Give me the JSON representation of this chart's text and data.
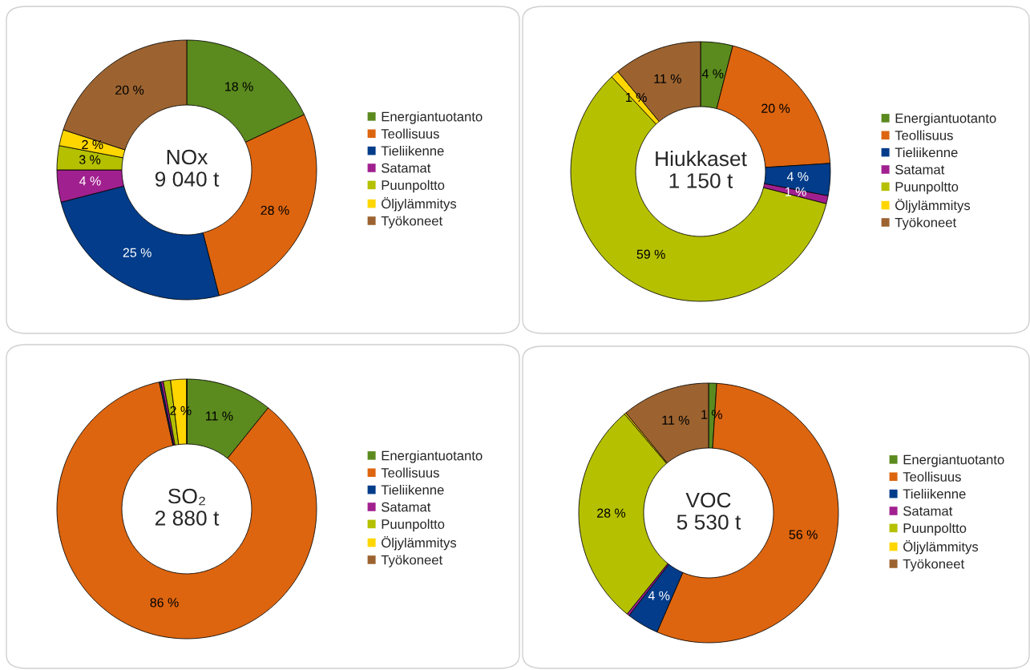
{
  "chart_data": [
    {
      "type": "donut",
      "title": "NOx\n9 040 t",
      "categories": [
        "Energiantuotanto",
        "Teollisuus",
        "Tieliikenne",
        "Satamat",
        "Puunpoltto",
        "Öljylämmitys",
        "Työkoneet"
      ],
      "values": [
        18,
        28,
        25,
        4,
        3,
        2,
        20
      ],
      "colors": [
        "#5b8a1e",
        "#dd650f",
        "#023c8a",
        "#a1208f",
        "#b5c000",
        "#ffd600",
        "#9c6330"
      ],
      "value_labels": [
        "18 %",
        "28 %",
        "25 %",
        "4 %",
        "3 %",
        "2 %",
        "20 %"
      ],
      "legend": "right"
    },
    {
      "type": "donut",
      "title": "Hiukkaset\n1 150 t",
      "categories": [
        "Energiantuotanto",
        "Teollisuus",
        "Tieliikenne",
        "Satamat",
        "Puunpoltto",
        "Öljylämmitys",
        "Työkoneet"
      ],
      "values": [
        4,
        20,
        4,
        1,
        59,
        1,
        11
      ],
      "colors": [
        "#5b8a1e",
        "#dd650f",
        "#023c8a",
        "#a1208f",
        "#b5c000",
        "#ffd600",
        "#9c6330"
      ],
      "value_labels": [
        "4 %",
        "20 %",
        "4 %",
        "1 %",
        "59 %",
        "1 %",
        "11 %"
      ],
      "legend": "right"
    },
    {
      "type": "donut",
      "title": "SO₂\n2 880 t",
      "categories": [
        "Energiantuotanto",
        "Teollisuus",
        "Tieliikenne",
        "Satamat",
        "Puunpoltto",
        "Öljylämmitys",
        "Työkoneet"
      ],
      "values": [
        10.8,
        85.8,
        0.2,
        0.3,
        0.9,
        2.0,
        0
      ],
      "colors": [
        "#5b8a1e",
        "#dd650f",
        "#023c8a",
        "#a1208f",
        "#b5c000",
        "#ffd600",
        "#9c6330"
      ],
      "value_labels": [
        "11 %",
        "86 %",
        null,
        null,
        null,
        "2 %",
        null
      ],
      "legend": "right"
    },
    {
      "type": "donut",
      "title": "VOC\n5 530 t",
      "categories": [
        "Energiantuotanto",
        "Teollisuus",
        "Tieliikenne",
        "Satamat",
        "Puunpoltto",
        "Öljylämmitys",
        "Työkoneet"
      ],
      "values": [
        1,
        55.5,
        4,
        0.3,
        28,
        0.2,
        11
      ],
      "colors": [
        "#5b8a1e",
        "#dd650f",
        "#023c8a",
        "#a1208f",
        "#b5c000",
        "#ffd600",
        "#9c6330"
      ],
      "value_labels": [
        "1 %",
        "56 %",
        "4 %",
        null,
        "28 %",
        null,
        "11 %"
      ],
      "legend": "right"
    }
  ]
}
